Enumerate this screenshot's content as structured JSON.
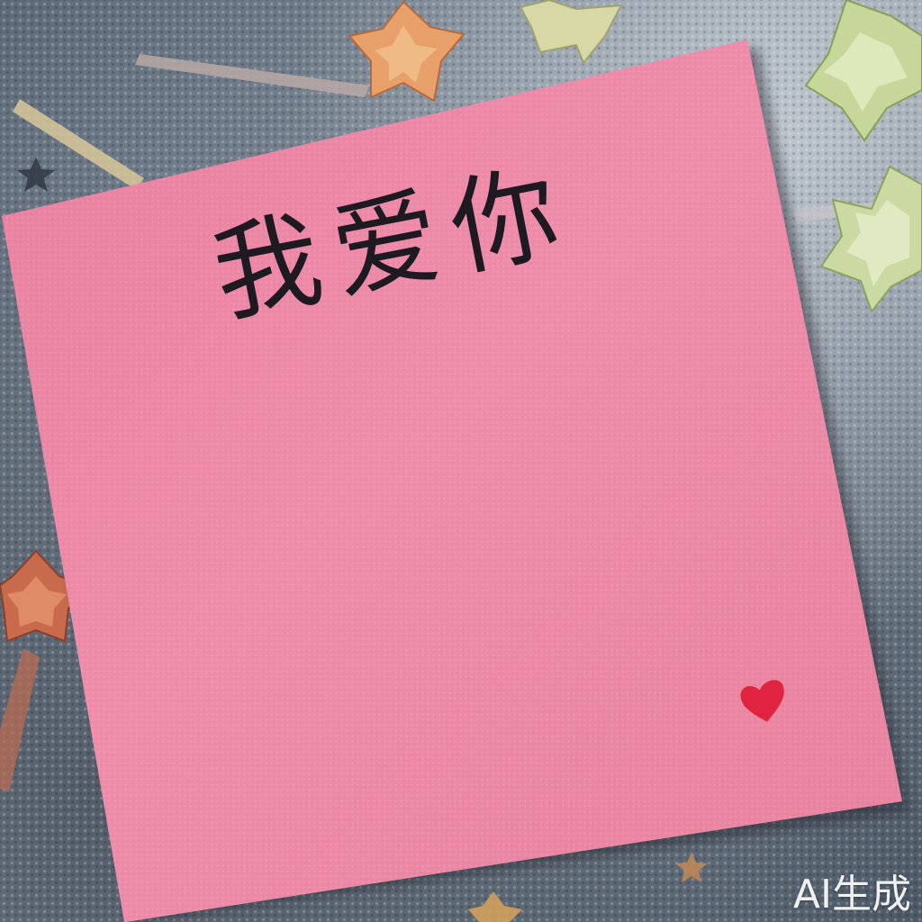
{
  "note": {
    "text": "我爱你",
    "paper_color": "#ec8aa6",
    "ink_color": "#1e1a22",
    "heart_color": "#e0243f"
  },
  "watermark": {
    "text": "AI生成"
  },
  "icons": {
    "heart": "heart-icon",
    "paper_stars": "paper-star-icon"
  }
}
